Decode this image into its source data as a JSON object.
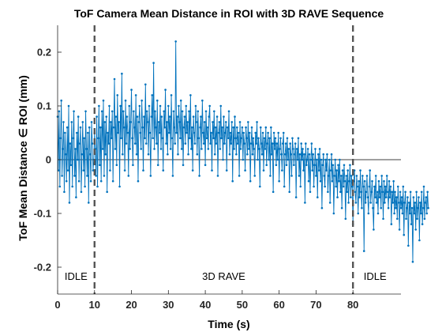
{
  "chart_data": {
    "type": "line",
    "title": "ToF Camera Mean Distance in ROI with 3D RAVE Sequence",
    "xlabel": "Time (s)",
    "ylabel": "ToF Mean Distance ∈ ROI (mm)",
    "xlim": [
      0,
      93
    ],
    "ylim": [
      -0.25,
      0.25
    ],
    "x_ticks": [
      0,
      10,
      20,
      30,
      40,
      50,
      60,
      70,
      80
    ],
    "x_tick_labels": [
      "0",
      "10",
      "20",
      "30",
      "40",
      "50",
      "60",
      "70",
      "80"
    ],
    "y_ticks": [
      0.2,
      0.1,
      0,
      -0.1,
      -0.2
    ],
    "y_tick_labels": [
      "0.2",
      "0.1",
      "0",
      "-0.1",
      "-0.2"
    ],
    "grid": false,
    "zero_line": true,
    "line_color": "#0072BD",
    "vertical_markers": [
      {
        "x": 10,
        "style": "dashed",
        "color": "#555555"
      },
      {
        "x": 80,
        "style": "dashed",
        "color": "#555555"
      }
    ],
    "phase_labels": [
      {
        "text": "IDLE",
        "x": 5
      },
      {
        "text": "3D RAVE",
        "x": 45
      },
      {
        "text": "IDLE",
        "x": 86
      }
    ],
    "series": [
      {
        "x_start": 0,
        "x_step": 0.2,
        "values": [
          0.08,
          -0.02,
          0.09,
          -0.05,
          0.04,
          0.11,
          -0.03,
          0.02,
          0.07,
          -0.06,
          0.05,
          0.01,
          -0.04,
          0.06,
          -0.02,
          0.1,
          -0.08,
          0.03,
          -0.01,
          0.07,
          -0.05,
          0.04,
          0.09,
          -0.03,
          0.02,
          -0.07,
          0.05,
          0.0,
          0.08,
          -0.04,
          0.03,
          0.06,
          -0.06,
          0.01,
          0.07,
          -0.02,
          0.04,
          -0.05,
          0.09,
          0.02,
          -0.03,
          0.05,
          -0.08,
          0.06,
          0.01,
          -0.04,
          0.07,
          0.03,
          -0.02,
          0.0,
          0.05,
          0.02,
          -0.03,
          0.08,
          -0.05,
          0.04,
          0.1,
          -0.01,
          0.06,
          -0.04,
          0.09,
          0.02,
          0.11,
          -0.03,
          0.07,
          0.01,
          0.08,
          -0.06,
          0.05,
          0.03,
          0.1,
          -0.02,
          0.07,
          0.04,
          0.09,
          -0.04,
          0.06,
          0.15,
          0.02,
          0.08,
          -0.01,
          0.12,
          0.05,
          0.07,
          -0.05,
          0.1,
          0.04,
          0.16,
          0.01,
          0.09,
          0.06,
          -0.02,
          0.11,
          0.03,
          0.08,
          0.05,
          -0.03,
          0.1,
          0.02,
          0.07,
          0.13,
          0.04,
          -0.01,
          0.09,
          0.06,
          0.03,
          0.12,
          0.01,
          0.08,
          -0.04,
          0.07,
          0.1,
          0.05,
          0.02,
          0.11,
          0.06,
          -0.02,
          0.08,
          0.04,
          0.14,
          0.03,
          0.09,
          0.07,
          0.01,
          0.1,
          0.05,
          -0.03,
          0.08,
          0.12,
          0.04,
          0.18,
          0.02,
          0.09,
          0.06,
          0.03,
          0.11,
          -0.01,
          0.07,
          0.05,
          0.1,
          0.02,
          0.08,
          0.04,
          -0.02,
          0.09,
          0.06,
          0.13,
          0.03,
          0.07,
          0.01,
          0.1,
          0.05,
          0.08,
          0.02,
          0.12,
          0.04,
          -0.03,
          0.09,
          0.06,
          0.03,
          0.22,
          0.05,
          0.08,
          0.01,
          0.1,
          0.07,
          0.04,
          0.11,
          0.02,
          0.09,
          -0.01,
          0.06,
          0.08,
          0.03,
          0.1,
          0.05,
          0.07,
          0.01,
          0.09,
          0.04,
          0.12,
          0.02,
          0.06,
          -0.02,
          0.08,
          0.05,
          0.03,
          0.1,
          0.07,
          0.01,
          0.09,
          0.04,
          -0.03,
          0.06,
          0.08,
          0.02,
          0.11,
          0.05,
          0.03,
          0.07,
          -0.01,
          0.09,
          0.04,
          0.06,
          0.02,
          0.08,
          0.1,
          0.03,
          0.05,
          -0.02,
          0.07,
          0.04,
          0.09,
          0.01,
          0.06,
          0.03,
          0.08,
          -0.03,
          0.05,
          0.07,
          0.02,
          0.1,
          0.04,
          0.06,
          0.0,
          0.08,
          0.03,
          0.05,
          0.07,
          -0.02,
          0.06,
          0.04,
          0.09,
          0.01,
          0.05,
          0.03,
          0.07,
          -0.04,
          0.06,
          0.02,
          0.08,
          0.04,
          0.01,
          0.06,
          0.03,
          0.05,
          -0.03,
          0.07,
          0.02,
          0.04,
          0.06,
          0.0,
          0.05,
          0.03,
          -0.02,
          0.06,
          0.04,
          0.01,
          0.07,
          0.02,
          0.05,
          -0.04,
          0.03,
          0.06,
          0.01,
          0.04,
          0.02,
          -0.03,
          0.05,
          0.03,
          0.07,
          0.0,
          0.04,
          0.02,
          -0.05,
          0.06,
          0.03,
          0.01,
          0.05,
          -0.02,
          0.04,
          0.02,
          0.06,
          -0.01,
          0.03,
          0.05,
          0.0,
          0.04,
          -0.03,
          0.06,
          0.01,
          0.03,
          -0.06,
          0.05,
          0.02,
          0.04,
          -0.01,
          0.03,
          0.0,
          0.05,
          -0.04,
          0.02,
          0.04,
          0.01,
          -0.02,
          0.03,
          0.05,
          -0.05,
          0.01,
          0.03,
          -0.01,
          0.04,
          0.0,
          0.02,
          -0.06,
          0.03,
          0.01,
          -0.03,
          0.04,
          0.02,
          -0.01,
          0.01,
          0.03,
          -0.07,
          0.02,
          0.0,
          0.04,
          -0.03,
          0.01,
          -0.05,
          0.03,
          0.0,
          0.02,
          -0.02,
          0.01,
          -0.08,
          0.03,
          -0.01,
          0.0,
          0.02,
          -0.04,
          0.01,
          -0.06,
          0.0,
          0.03,
          -0.02,
          0.01,
          -0.05,
          -0.01,
          0.02,
          -0.03,
          0.0,
          -0.07,
          0.01,
          -0.02,
          0.02,
          -0.04,
          0.0,
          -0.09,
          -0.01,
          0.01,
          -0.03,
          -0.05,
          0.0,
          -0.02,
          0.01,
          -0.06,
          -0.03,
          0.0,
          -0.08,
          -0.02,
          0.01,
          -0.04,
          -0.01,
          -0.1,
          -0.03,
          0.0,
          -0.05,
          -0.02,
          -0.07,
          -0.01,
          -0.04,
          0.0,
          -0.06,
          -0.03,
          -0.09,
          -0.02,
          -0.05,
          -0.01,
          -0.04,
          -0.11,
          -0.03,
          -0.06,
          -0.02,
          -0.08,
          -0.04,
          -0.01,
          -0.07,
          -0.03,
          -0.05,
          -0.12,
          -0.04,
          -0.02,
          -0.06,
          -0.08,
          -0.03,
          -0.05,
          -0.1,
          -0.04,
          -0.07,
          -0.02,
          -0.06,
          -0.09,
          -0.03,
          -0.05,
          -0.17,
          -0.04,
          -0.08,
          -0.06,
          -0.03,
          -0.07,
          -0.1,
          -0.05,
          -0.02,
          -0.08,
          -0.06,
          -0.04,
          -0.09,
          -0.13,
          -0.05,
          -0.07,
          -0.03,
          -0.08,
          -0.06,
          -0.1,
          -0.04,
          -0.07,
          -0.05,
          -0.09,
          -0.03,
          -0.06,
          -0.11,
          -0.04,
          -0.08,
          -0.05,
          -0.07,
          -0.03,
          -0.06,
          -0.09,
          -0.04,
          -0.07,
          -0.05,
          -0.12,
          -0.06,
          -0.08,
          -0.04,
          -0.1,
          -0.06,
          -0.09,
          -0.07,
          -0.11,
          -0.05,
          -0.08,
          -0.13,
          -0.06,
          -0.09,
          -0.07,
          -0.1,
          -0.05,
          -0.14,
          -0.08,
          -0.06,
          -0.11,
          -0.09,
          -0.07,
          -0.16,
          -0.08,
          -0.1,
          -0.06,
          -0.12,
          -0.09,
          -0.19,
          -0.07,
          -0.1,
          -0.08,
          -0.13,
          -0.06,
          -0.11,
          -0.09,
          -0.07,
          -0.15,
          -0.08,
          -0.1,
          -0.06,
          -0.12,
          -0.09,
          -0.05,
          -0.11,
          -0.08,
          -0.07,
          -0.1,
          -0.06,
          -0.09
        ]
      }
    ]
  }
}
